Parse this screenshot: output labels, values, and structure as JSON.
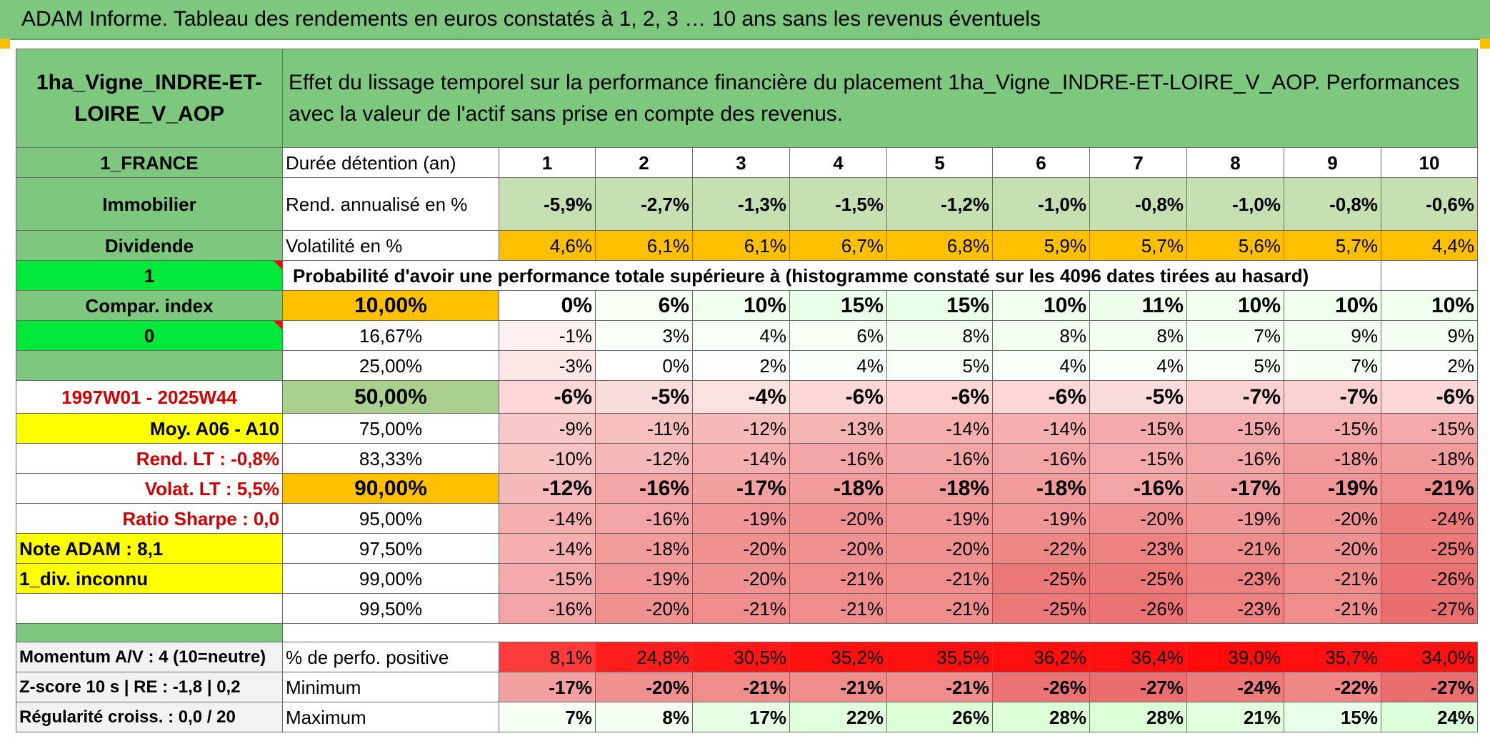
{
  "title": "ADAM Informe. Tableau des rendements en euros constatés à 1, 2, 3 … 10 ans sans les revenus éventuels",
  "asset_name": "1ha_Vigne_INDRE-ET-LOIRE_V_AOP",
  "description": "Effet du lissage temporel sur la performance financière du placement 1ha_Vigne_INDRE-ET-LOIRE_V_AOP. Performances avec la valeur de l'actif sans prise en compte des revenus.",
  "left": {
    "country": "1_FRANCE",
    "category": "Immobilier",
    "type": "Dividende",
    "flag1": "1",
    "compar_index": "Compar. index",
    "flag0": "0",
    "period": "1997W01 - 2025W44",
    "moy": "Moy. A06 - A10",
    "rend_lt": "Rend. LT :    -0,8%",
    "volat_lt": "Volat. LT :   5,5%",
    "sharpe": "Ratio Sharpe :    0,0",
    "note": "Note ADAM : 8,1",
    "div": "1_div. inconnu",
    "momentum": "Momentum A/V : 4 (10=neutre)",
    "zscore": "Z-score 10 s | RE : -1,8 | 0,2",
    "regularite": "Régularité croiss. : 0,0 / 20"
  },
  "labels": {
    "duree": "Durée détention (an)",
    "rend": "Rend. annualisé en %",
    "vol": "Volatilité en %",
    "prob": "Probabilité d'avoir une performance totale supérieure à (histogramme constaté sur les 4096 dates tirées au hasard)",
    "pos": "% de perfo. positive",
    "min": "Minimum",
    "max": "Maximum"
  },
  "years": [
    "1",
    "2",
    "3",
    "4",
    "5",
    "6",
    "7",
    "8",
    "9",
    "10"
  ],
  "rend": [
    "-5,9%",
    "-2,7%",
    "-1,3%",
    "-1,5%",
    "-1,2%",
    "-1,0%",
    "-0,8%",
    "-1,0%",
    "-0,8%",
    "-0,6%"
  ],
  "vol": [
    "4,6%",
    "6,1%",
    "6,1%",
    "6,7%",
    "6,8%",
    "5,9%",
    "5,7%",
    "5,6%",
    "5,7%",
    "4,4%"
  ],
  "percentiles": [
    {
      "p": "10,00%",
      "vals": [
        "0%",
        "6%",
        "10%",
        "15%",
        "15%",
        "10%",
        "11%",
        "10%",
        "10%",
        "10%"
      ]
    },
    {
      "p": "16,67%",
      "vals": [
        "-1%",
        "3%",
        "4%",
        "6%",
        "8%",
        "8%",
        "8%",
        "7%",
        "9%",
        "9%"
      ]
    },
    {
      "p": "25,00%",
      "vals": [
        "-3%",
        "0%",
        "2%",
        "4%",
        "5%",
        "4%",
        "4%",
        "5%",
        "7%",
        "2%"
      ]
    },
    {
      "p": "50,00%",
      "vals": [
        "-6%",
        "-5%",
        "-4%",
        "-6%",
        "-6%",
        "-6%",
        "-5%",
        "-7%",
        "-7%",
        "-6%"
      ]
    },
    {
      "p": "75,00%",
      "vals": [
        "-9%",
        "-11%",
        "-12%",
        "-13%",
        "-14%",
        "-14%",
        "-15%",
        "-15%",
        "-15%",
        "-15%"
      ]
    },
    {
      "p": "83,33%",
      "vals": [
        "-10%",
        "-12%",
        "-14%",
        "-16%",
        "-16%",
        "-16%",
        "-15%",
        "-16%",
        "-18%",
        "-18%"
      ]
    },
    {
      "p": "90,00%",
      "vals": [
        "-12%",
        "-16%",
        "-17%",
        "-18%",
        "-18%",
        "-18%",
        "-16%",
        "-17%",
        "-19%",
        "-21%"
      ]
    },
    {
      "p": "95,00%",
      "vals": [
        "-14%",
        "-16%",
        "-19%",
        "-20%",
        "-19%",
        "-19%",
        "-20%",
        "-19%",
        "-20%",
        "-24%"
      ]
    },
    {
      "p": "97,50%",
      "vals": [
        "-14%",
        "-18%",
        "-20%",
        "-20%",
        "-20%",
        "-22%",
        "-23%",
        "-21%",
        "-20%",
        "-25%"
      ]
    },
    {
      "p": "99,00%",
      "vals": [
        "-15%",
        "-19%",
        "-20%",
        "-21%",
        "-21%",
        "-25%",
        "-25%",
        "-23%",
        "-21%",
        "-26%"
      ]
    },
    {
      "p": "99,50%",
      "vals": [
        "-16%",
        "-20%",
        "-21%",
        "-21%",
        "-21%",
        "-25%",
        "-26%",
        "-23%",
        "-21%",
        "-27%"
      ]
    }
  ],
  "positive": [
    "8,1%",
    "24,8%",
    "30,5%",
    "35,2%",
    "35,5%",
    "36,2%",
    "36,4%",
    "39,0%",
    "35,7%",
    "34,0%"
  ],
  "minimum": [
    "-17%",
    "-20%",
    "-21%",
    "-21%",
    "-21%",
    "-26%",
    "-27%",
    "-24%",
    "-22%",
    "-27%"
  ],
  "maximum": [
    "7%",
    "8%",
    "17%",
    "22%",
    "26%",
    "28%",
    "28%",
    "21%",
    "15%",
    "24%"
  ],
  "colors": {
    "header_green": "#7dc77e",
    "light_green": "#c6e0b4",
    "bright_green": "#00e83a",
    "yellow": "#ffff00",
    "orange": "#ffc000",
    "red_text": "#d00000"
  }
}
